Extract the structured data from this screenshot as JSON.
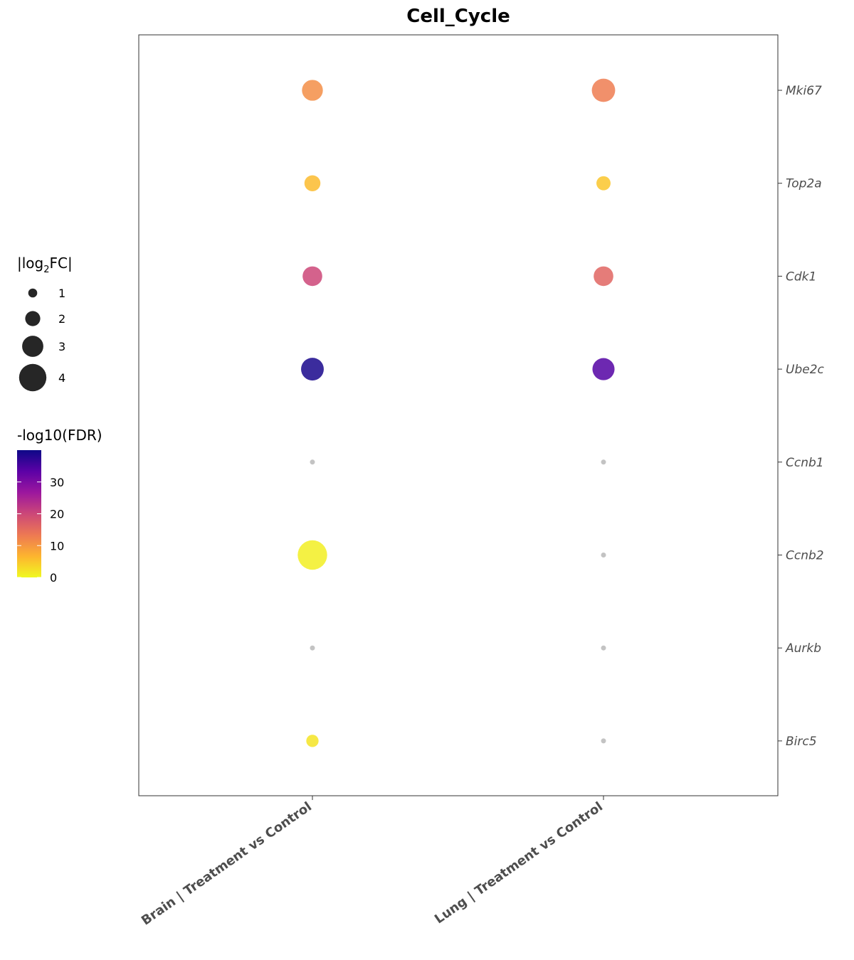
{
  "chart_data": {
    "type": "scatter",
    "title": "Cell_Cycle",
    "categories": [
      "Brain | Treatment vs Control",
      "Lung | Treatment vs Control"
    ],
    "genes": [
      "Mki67",
      "Top2a",
      "Cdk1",
      "Ube2c",
      "Ccnb1",
      "Ccnb2",
      "Aurkb",
      "Birc5"
    ],
    "points": [
      {
        "category": "Brain | Treatment vs Control",
        "gene": "Mki67",
        "log2fc_abs": 2.6,
        "neg_log10_fdr": 11,
        "significant": true
      },
      {
        "category": "Lung | Treatment vs Control",
        "gene": "Mki67",
        "log2fc_abs": 3.0,
        "neg_log10_fdr": 13,
        "significant": true
      },
      {
        "category": "Brain | Treatment vs Control",
        "gene": "Top2a",
        "log2fc_abs": 1.8,
        "neg_log10_fdr": 6,
        "significant": true
      },
      {
        "category": "Lung | Treatment vs Control",
        "gene": "Top2a",
        "log2fc_abs": 1.5,
        "neg_log10_fdr": 5,
        "significant": true
      },
      {
        "category": "Brain | Treatment vs Control",
        "gene": "Cdk1",
        "log2fc_abs": 2.4,
        "neg_log10_fdr": 20,
        "significant": true
      },
      {
        "category": "Lung | Treatment vs Control",
        "gene": "Cdk1",
        "log2fc_abs": 2.4,
        "neg_log10_fdr": 16,
        "significant": true
      },
      {
        "category": "Brain | Treatment vs Control",
        "gene": "Ube2c",
        "log2fc_abs": 2.9,
        "neg_log10_fdr": 39,
        "significant": true
      },
      {
        "category": "Lung | Treatment vs Control",
        "gene": "Ube2c",
        "log2fc_abs": 2.8,
        "neg_log10_fdr": 34,
        "significant": true
      },
      {
        "category": "Brain | Treatment vs Control",
        "gene": "Ccnb1",
        "significant": false
      },
      {
        "category": "Lung | Treatment vs Control",
        "gene": "Ccnb1",
        "significant": false
      },
      {
        "category": "Brain | Treatment vs Control",
        "gene": "Ccnb2",
        "log2fc_abs": 4.0,
        "neg_log10_fdr": 1,
        "significant": true
      },
      {
        "category": "Lung | Treatment vs Control",
        "gene": "Ccnb2",
        "significant": false
      },
      {
        "category": "Brain | Treatment vs Control",
        "gene": "Aurkb",
        "significant": false
      },
      {
        "category": "Lung | Treatment vs Control",
        "gene": "Aurkb",
        "significant": false
      },
      {
        "category": "Brain | Treatment vs Control",
        "gene": "Birc5",
        "log2fc_abs": 1.2,
        "neg_log10_fdr": 2,
        "significant": true
      },
      {
        "category": "Lung | Treatment vs Control",
        "gene": "Birc5",
        "significant": false
      }
    ],
    "size_legend": {
      "title_pre": "|log",
      "title_sub": "2",
      "title_post": "FC|",
      "values": [
        1,
        2,
        3,
        4
      ]
    },
    "color_legend": {
      "title": "-log10(FDR)",
      "min": 0,
      "max": 40,
      "ticks": [
        0,
        10,
        20,
        30
      ]
    },
    "colors": {
      "nonsignificant": "#bdbdbd",
      "gradient": [
        "#f0f921",
        "#fdb42f",
        "#ed7953",
        "#cc4778",
        "#9c179e",
        "#5c01a6",
        "#0d0887"
      ],
      "legend_key": "#262626"
    },
    "legend_position": "left",
    "grid": false
  }
}
